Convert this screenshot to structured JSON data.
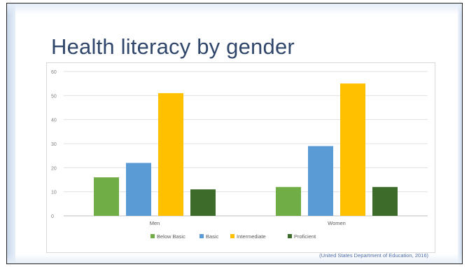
{
  "slide": {
    "title": "Health literacy by gender",
    "source": "(United States Department of Education, 2016)"
  },
  "chart_data": {
    "type": "bar",
    "categories": [
      "Men",
      "Women"
    ],
    "series": [
      {
        "name": "Below Basic",
        "values": [
          16,
          12
        ],
        "color": "#70ad47"
      },
      {
        "name": "Basic",
        "values": [
          22,
          29
        ],
        "color": "#5b9bd5"
      },
      {
        "name": "Intermediate",
        "values": [
          51,
          55
        ],
        "color": "#ffc000"
      },
      {
        "name": "Proficient",
        "values": [
          11,
          12
        ],
        "color": "#3d6b29"
      }
    ],
    "ylim": [
      0,
      60
    ],
    "yticks": [
      "0",
      "10",
      "20",
      "30",
      "40",
      "50",
      "60"
    ],
    "grid": true,
    "legend": "bottom"
  }
}
